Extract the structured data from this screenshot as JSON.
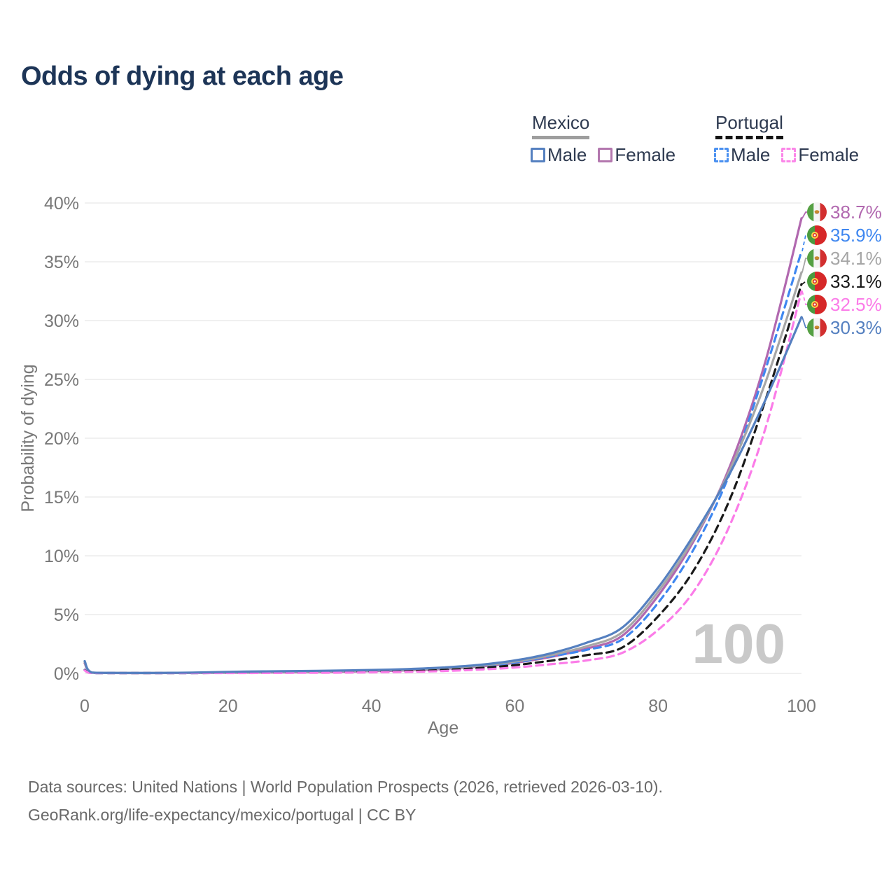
{
  "header": {
    "title": "Odds of dying at each age"
  },
  "legend": {
    "mexico": {
      "label": "Mexico",
      "male": "Male",
      "female": "Female"
    },
    "portugal": {
      "label": "Portugal",
      "male": "Male",
      "female": "Female"
    }
  },
  "footer": {
    "line1": "Data sources: United Nations | World Population Prospects (2026, retrieved 2026-03-10).",
    "line2": "GeoRank.org/life-expectancy/mexico/portugal | CC BY"
  },
  "colors": {
    "title": "#1d3557",
    "axis_text": "#787878",
    "grid": "#ebebeb",
    "watermark": "#c9c9c9",
    "footer": "#696969",
    "legend_text": "#2e3a50"
  },
  "chart_data": {
    "type": "line",
    "title": "Odds of dying at each age",
    "xlabel": "Age",
    "ylabel": "Probability of dying",
    "xlim": [
      0,
      100
    ],
    "ylim": [
      0,
      40
    ],
    "x_ticks": [
      0,
      20,
      40,
      60,
      80,
      100
    ],
    "y_ticks": [
      0,
      5,
      10,
      15,
      20,
      25,
      30,
      35,
      40
    ],
    "y_tick_suffix": "%",
    "grid": "horizontal-only",
    "legend_position": "top-right",
    "watermark": "100",
    "ages": [
      0,
      1,
      5,
      10,
      15,
      20,
      25,
      30,
      35,
      40,
      45,
      50,
      55,
      60,
      65,
      70,
      75,
      80,
      85,
      90,
      95,
      100
    ],
    "series": [
      {
        "name": "Mexico Female",
        "country": "mexico",
        "sex": "female",
        "style": "solid",
        "color": "#b168af",
        "flag_icon": "mexico-flag-icon",
        "end_label": "38.7%",
        "values": [
          0.85,
          0.06,
          0.03,
          0.03,
          0.04,
          0.06,
          0.08,
          0.1,
          0.14,
          0.19,
          0.26,
          0.38,
          0.58,
          0.9,
          1.4,
          2.1,
          3.2,
          6.6,
          11.3,
          17.6,
          26.6,
          38.7
        ]
      },
      {
        "name": "Portugal Male",
        "country": "portugal",
        "sex": "male",
        "style": "dashed",
        "color": "#3f87f0",
        "flag_icon": "portugal-flag-icon",
        "end_label": "35.9%",
        "values": [
          0.3,
          0.03,
          0.01,
          0.015,
          0.03,
          0.05,
          0.07,
          0.09,
          0.12,
          0.17,
          0.25,
          0.38,
          0.6,
          0.92,
          1.45,
          2.0,
          2.9,
          6.0,
          10.6,
          17.0,
          25.9,
          35.9
        ]
      },
      {
        "name": "Mexico Both sexes",
        "country": "mexico",
        "sex": "both",
        "style": "solid",
        "color": "#a6a6a6",
        "flag_icon": "mexico-flag-icon",
        "end_label": "34.1%",
        "values": [
          0.95,
          0.07,
          0.035,
          0.035,
          0.055,
          0.09,
          0.12,
          0.15,
          0.19,
          0.24,
          0.31,
          0.44,
          0.65,
          1.0,
          1.55,
          2.3,
          3.5,
          6.95,
          11.5,
          17.3,
          24.8,
          34.1
        ]
      },
      {
        "name": "Portugal Both sexes",
        "country": "portugal",
        "sex": "both",
        "style": "dashed",
        "color": "#1a1a1a",
        "flag_icon": "portugal-flag-icon",
        "end_label": "33.1%",
        "values": [
          0.28,
          0.025,
          0.01,
          0.012,
          0.025,
          0.04,
          0.05,
          0.065,
          0.09,
          0.13,
          0.19,
          0.29,
          0.45,
          0.7,
          1.08,
          1.55,
          2.2,
          4.85,
          8.8,
          14.8,
          23.3,
          33.1
        ]
      },
      {
        "name": "Portugal Female",
        "country": "portugal",
        "sex": "female",
        "style": "dashed",
        "color": "#fb7ce8",
        "flag_icon": "portugal-flag-icon",
        "end_label": "32.5%",
        "values": [
          0.25,
          0.02,
          0.008,
          0.01,
          0.02,
          0.025,
          0.035,
          0.045,
          0.06,
          0.09,
          0.13,
          0.2,
          0.32,
          0.5,
          0.78,
          1.1,
          1.75,
          3.7,
          7.0,
          12.6,
          20.9,
          32.5
        ]
      },
      {
        "name": "Mexico Male",
        "country": "mexico",
        "sex": "male",
        "style": "solid",
        "color": "#5580c0",
        "flag_icon": "mexico-flag-icon",
        "end_label": "30.3%",
        "values": [
          1.05,
          0.08,
          0.04,
          0.04,
          0.07,
          0.13,
          0.17,
          0.2,
          0.24,
          0.29,
          0.37,
          0.5,
          0.72,
          1.1,
          1.7,
          2.6,
          3.9,
          7.3,
          11.8,
          17.0,
          23.3,
          30.3
        ]
      }
    ]
  }
}
